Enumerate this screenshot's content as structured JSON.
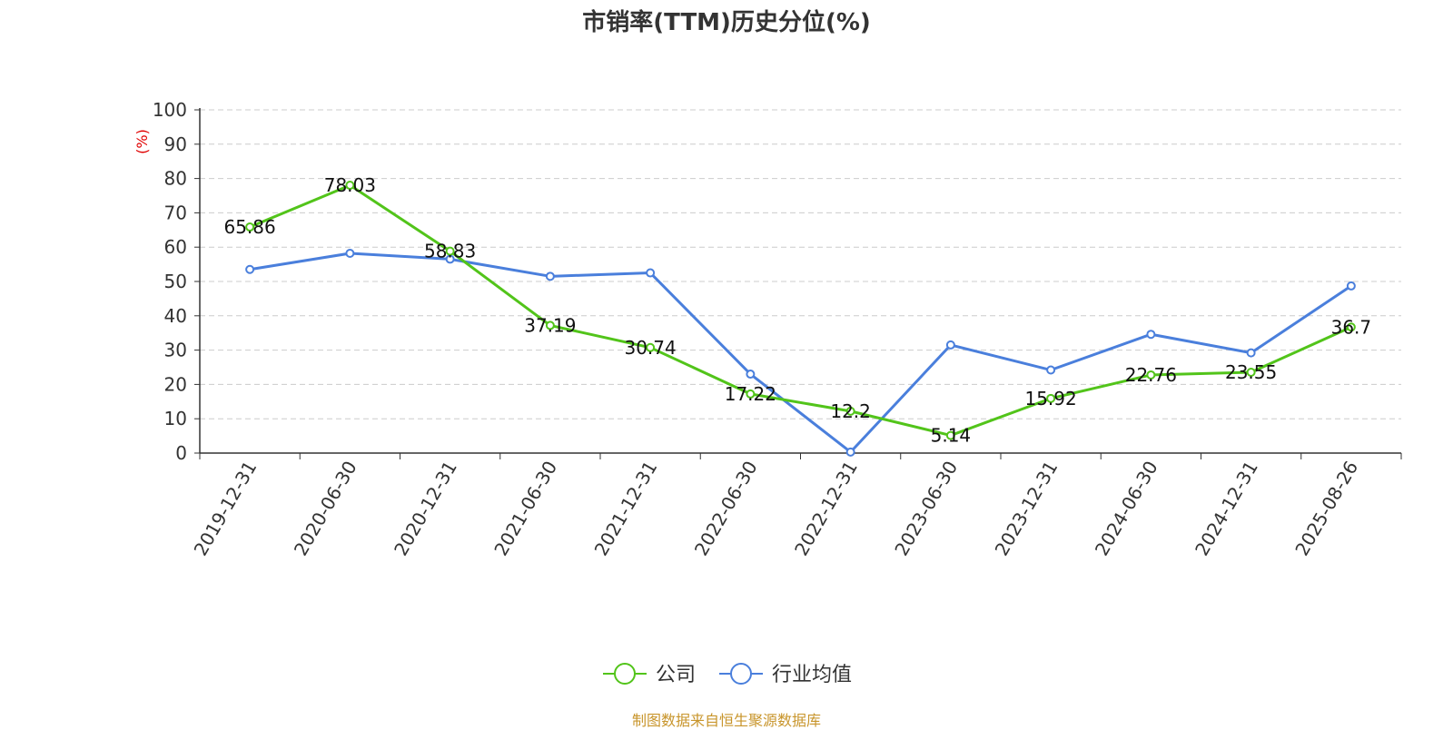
{
  "chart_data": {
    "type": "line",
    "title": "市销率(TTM)历史分位(%)",
    "ylabel": "(%)",
    "ylim": [
      0,
      100
    ],
    "yticks": [
      0,
      10,
      20,
      30,
      40,
      50,
      60,
      70,
      80,
      90,
      100
    ],
    "categories": [
      "2019-12-31",
      "2020-06-30",
      "2020-12-31",
      "2021-06-30",
      "2021-12-31",
      "2022-06-30",
      "2022-12-31",
      "2023-06-30",
      "2023-12-31",
      "2024-06-30",
      "2024-12-31",
      "2025-08-26"
    ],
    "series": [
      {
        "name": "公司",
        "color": "#52c41a",
        "values": [
          65.86,
          78.03,
          58.83,
          37.19,
          30.74,
          17.22,
          12.2,
          5.14,
          15.92,
          22.76,
          23.55,
          36.7
        ],
        "labels": [
          "65.86",
          "78.03",
          "58.83",
          "37.19",
          "30.74",
          "17.22",
          "12.2",
          "5.14",
          "15.92",
          "22.76",
          "23.55",
          "36.7"
        ]
      },
      {
        "name": "行业均值",
        "color": "#4a7fdc",
        "values": [
          53.5,
          58.2,
          56.5,
          51.5,
          52.5,
          23.0,
          0.3,
          31.5,
          24.2,
          34.6,
          29.2,
          48.7
        ]
      }
    ],
    "grid": true,
    "legend_position": "bottom-center",
    "source": "制图数据来自恒生聚源数据库"
  }
}
